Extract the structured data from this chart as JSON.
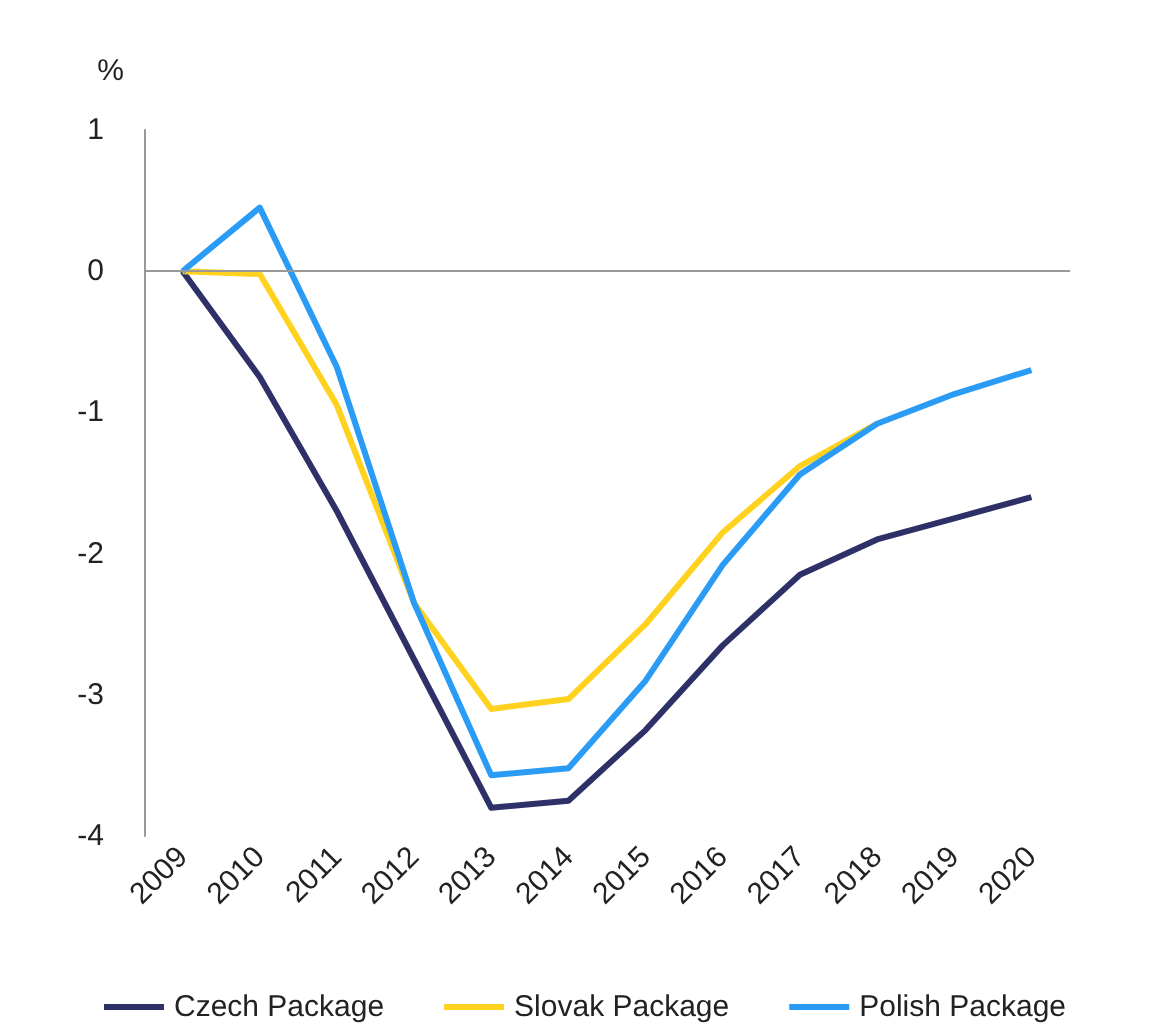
{
  "chart_data": {
    "type": "line",
    "ylabel": "%",
    "categories": [
      "2009",
      "2010",
      "2011",
      "2012",
      "2013",
      "2014",
      "2015",
      "2016",
      "2017",
      "2018",
      "2019",
      "2020"
    ],
    "series": [
      {
        "name": "Czech Package",
        "color": "#2e3168",
        "values": [
          0,
          -0.75,
          -1.7,
          -2.75,
          -3.8,
          -3.75,
          -3.25,
          -2.65,
          -2.15,
          -1.9,
          -1.75,
          -1.6
        ]
      },
      {
        "name": "Slovak Package",
        "color": "#ffd21f",
        "values": [
          0,
          -0.02,
          -0.95,
          -2.35,
          -3.1,
          -3.03,
          -2.5,
          -1.85,
          -1.38,
          -1.08,
          null,
          null
        ]
      },
      {
        "name": "Polish Package",
        "color": "#2b9cf5",
        "values": [
          0,
          0.45,
          -0.68,
          -2.35,
          -3.57,
          -3.52,
          -2.9,
          -2.08,
          -1.44,
          -1.08,
          -0.87,
          -0.7
        ]
      }
    ],
    "ylim": [
      -4,
      1
    ],
    "yticks": [
      -4,
      -3,
      -2,
      -1,
      0,
      1
    ],
    "grid": false,
    "ref_lines": [
      {
        "axis": "y",
        "value": 0,
        "color": "#999999"
      }
    ],
    "legend": "bottom",
    "marker": "none",
    "line_style": "solid"
  }
}
